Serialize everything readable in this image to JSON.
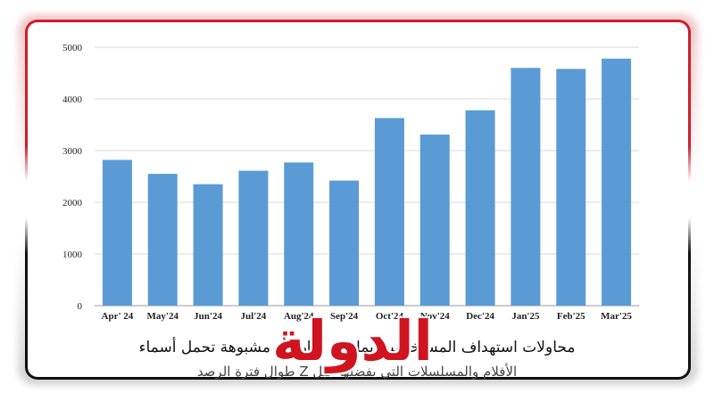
{
  "chart_data": {
    "type": "bar",
    "categories": [
      "Apr' 24",
      "May'24",
      "Jun'24",
      "Jul'24",
      "Aug'24",
      "Sep'24",
      "Oct'24",
      "Nov'24",
      "Dec'24",
      "Jan'25",
      "Feb'25",
      "Mar'25"
    ],
    "values": [
      2820,
      2550,
      2350,
      2610,
      2770,
      2420,
      3630,
      3310,
      3780,
      4600,
      4580,
      4780
    ],
    "yticks": [
      0,
      1000,
      2000,
      3000,
      4000,
      5000
    ],
    "ylim": [
      0,
      5000
    ],
    "grid": true,
    "bar_color": "#5b9bd5",
    "title": "",
    "xlabel": "",
    "ylabel": ""
  },
  "caption": {
    "line1": "محاولات استهداف المستخدمين بملفات ضارة أو مشبوهة تحمل أسماء",
    "line2": "الأفلام والمسلسلات التي يفضلها جيل Z طوال فترة الرصد"
  },
  "logo": {
    "text": "الدولة",
    "color": "#d0141f"
  },
  "frame_colors": {
    "top": "#d01c2a",
    "bottom": "#111111"
  }
}
